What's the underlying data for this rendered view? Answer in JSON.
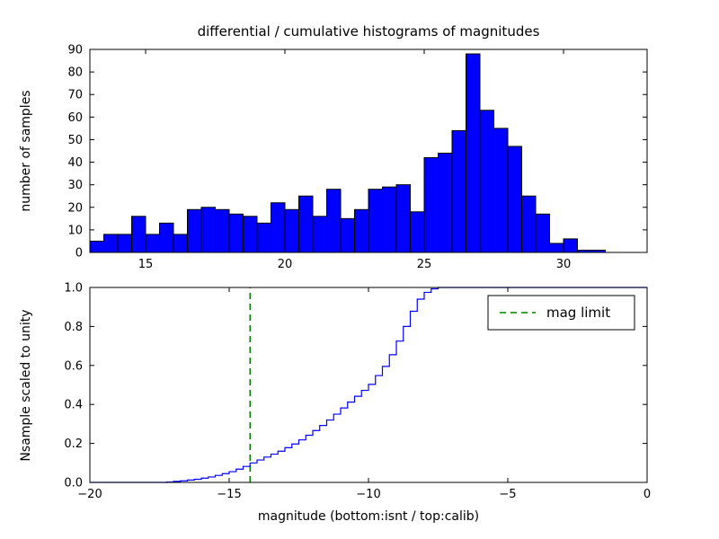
{
  "figure": {
    "title": "differential / cumulative histograms of magnitudes",
    "xlabel": "magnitude (bottom:isnt / top:calib)",
    "background_color": "#ffffff",
    "axis_color": "#000000"
  },
  "chart_data": [
    {
      "type": "bar",
      "name": "differential-histogram",
      "title": "differential / cumulative histograms of magnitudes",
      "ylabel": "number of samples",
      "bar_color": "#0000ff",
      "bar_edge_color": "#000000",
      "bin_start": 13.0,
      "bin_width": 0.5,
      "values": [
        5,
        8,
        8,
        16,
        8,
        13,
        8,
        19,
        20,
        19,
        17,
        16,
        13,
        22,
        19,
        25,
        16,
        28,
        15,
        19,
        28,
        29,
        30,
        18,
        42,
        44,
        54,
        88,
        63,
        55,
        47,
        25,
        17,
        4,
        6,
        1,
        1
      ],
      "xlim": [
        13,
        33
      ],
      "ylim": [
        0,
        90
      ],
      "xticks": [
        {
          "v": 15,
          "label": "15"
        },
        {
          "v": 20,
          "label": "20"
        },
        {
          "v": 25,
          "label": "25"
        },
        {
          "v": 30,
          "label": "30"
        }
      ],
      "yticks": [
        {
          "v": 0,
          "label": "0"
        },
        {
          "v": 10,
          "label": "10"
        },
        {
          "v": 20,
          "label": "20"
        },
        {
          "v": 30,
          "label": "30"
        },
        {
          "v": 40,
          "label": "40"
        },
        {
          "v": 50,
          "label": "50"
        },
        {
          "v": 60,
          "label": "60"
        },
        {
          "v": 70,
          "label": "70"
        },
        {
          "v": 80,
          "label": "80"
        },
        {
          "v": 90,
          "label": "90"
        }
      ],
      "grid": false
    },
    {
      "type": "line",
      "subtype": "step-cumulative",
      "name": "cumulative-histogram",
      "ylabel": "Nsample scaled to unity",
      "xlabel": "magnitude (bottom:isnt / top:calib)",
      "line_color": "#0000ff",
      "points": [
        [
          -20,
          0
        ],
        [
          -17.5,
          0
        ],
        [
          -17.25,
          0.002
        ],
        [
          -17,
          0.005
        ],
        [
          -16.75,
          0.008
        ],
        [
          -16.5,
          0.012
        ],
        [
          -16.25,
          0.016
        ],
        [
          -16,
          0.022
        ],
        [
          -15.75,
          0.028
        ],
        [
          -15.5,
          0.036
        ],
        [
          -15.25,
          0.045
        ],
        [
          -15,
          0.055
        ],
        [
          -14.75,
          0.068
        ],
        [
          -14.5,
          0.082
        ],
        [
          -14.25,
          0.1
        ],
        [
          -14,
          0.115
        ],
        [
          -13.75,
          0.13
        ],
        [
          -13.5,
          0.145
        ],
        [
          -13.25,
          0.16
        ],
        [
          -13,
          0.178
        ],
        [
          -12.75,
          0.197
        ],
        [
          -12.5,
          0.218
        ],
        [
          -12.25,
          0.242
        ],
        [
          -12,
          0.266
        ],
        [
          -11.75,
          0.292
        ],
        [
          -11.5,
          0.32
        ],
        [
          -11.25,
          0.35
        ],
        [
          -11,
          0.382
        ],
        [
          -10.75,
          0.412
        ],
        [
          -10.5,
          0.442
        ],
        [
          -10.25,
          0.472
        ],
        [
          -10,
          0.503
        ],
        [
          -9.75,
          0.548
        ],
        [
          -9.5,
          0.595
        ],
        [
          -9.25,
          0.655
        ],
        [
          -9,
          0.725
        ],
        [
          -8.75,
          0.8
        ],
        [
          -8.5,
          0.878
        ],
        [
          -8.25,
          0.94
        ],
        [
          -8,
          0.975
        ],
        [
          -7.75,
          0.993
        ],
        [
          -7.5,
          1.0
        ],
        [
          0,
          1.0
        ]
      ],
      "xlim": [
        -20,
        0
      ],
      "ylim": [
        0.0,
        1.0
      ],
      "xticks": [
        {
          "v": -20,
          "label": "−20"
        },
        {
          "v": -15,
          "label": "−15"
        },
        {
          "v": -10,
          "label": "−10"
        },
        {
          "v": -5,
          "label": "−5"
        },
        {
          "v": 0,
          "label": "0"
        }
      ],
      "yticks": [
        {
          "v": 0.0,
          "label": "0.0"
        },
        {
          "v": 0.2,
          "label": "0.2"
        },
        {
          "v": 0.4,
          "label": "0.4"
        },
        {
          "v": 0.6,
          "label": "0.6"
        },
        {
          "v": 0.8,
          "label": "0.8"
        },
        {
          "v": 1.0,
          "label": "1.0"
        }
      ],
      "mag_limit_line": {
        "x": -14.25,
        "color": "#008000",
        "style": "dashed"
      },
      "legend": {
        "position": "upper right",
        "entries": [
          {
            "label": "mag limit",
            "color": "#008000",
            "dash": true
          }
        ]
      },
      "grid": false
    }
  ]
}
